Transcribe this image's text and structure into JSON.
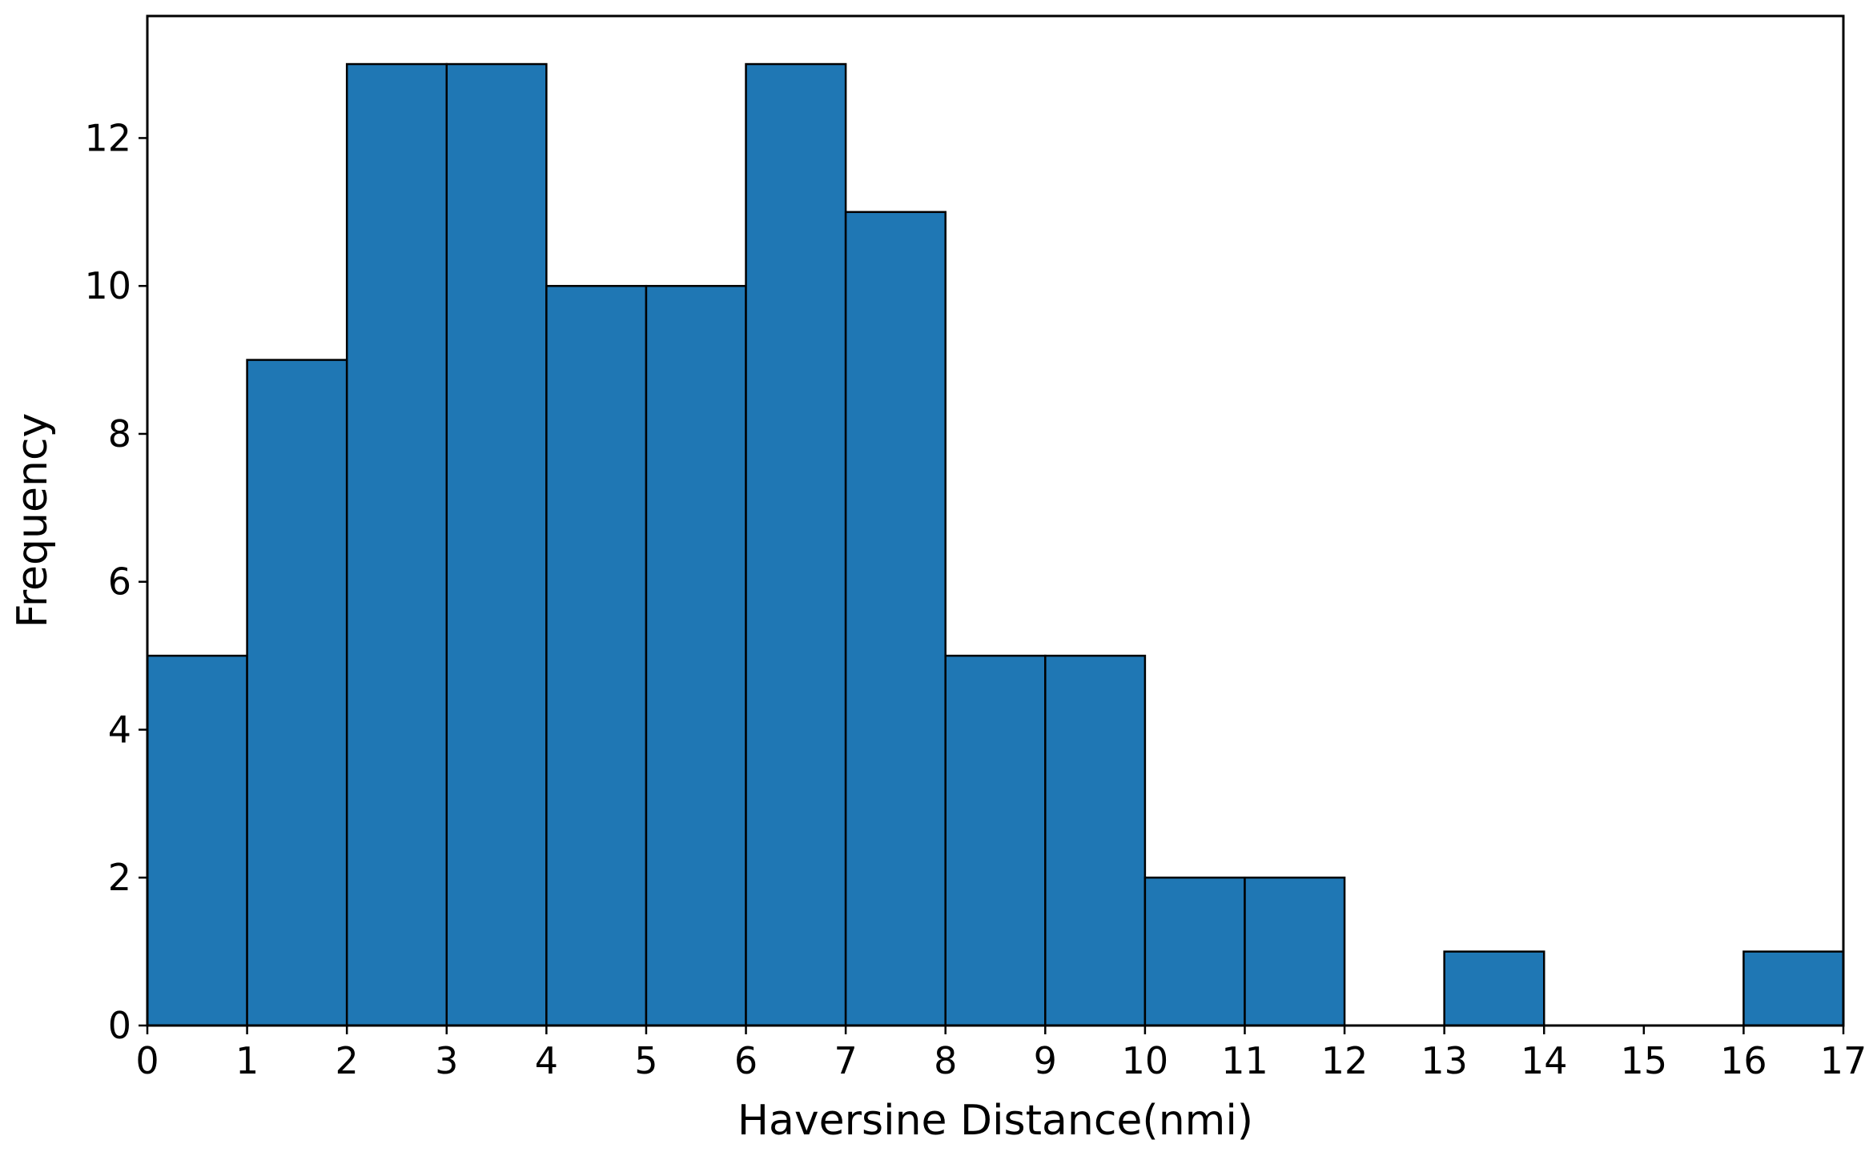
{
  "chart_data": {
    "type": "bar",
    "title": "",
    "xlabel": "Haversine Distance(nmi)",
    "ylabel": "Frequency",
    "bins": [
      {
        "x0": 0,
        "x1": 1,
        "count": 5
      },
      {
        "x0": 1,
        "x1": 2,
        "count": 9
      },
      {
        "x0": 2,
        "x1": 3,
        "count": 13
      },
      {
        "x0": 3,
        "x1": 4,
        "count": 13
      },
      {
        "x0": 4,
        "x1": 5,
        "count": 10
      },
      {
        "x0": 5,
        "x1": 6,
        "count": 10
      },
      {
        "x0": 6,
        "x1": 7,
        "count": 13
      },
      {
        "x0": 7,
        "x1": 8,
        "count": 11
      },
      {
        "x0": 8,
        "x1": 9,
        "count": 5
      },
      {
        "x0": 9,
        "x1": 10,
        "count": 5
      },
      {
        "x0": 10,
        "x1": 11,
        "count": 2
      },
      {
        "x0": 11,
        "x1": 12,
        "count": 2
      },
      {
        "x0": 12,
        "x1": 13,
        "count": 0
      },
      {
        "x0": 13,
        "x1": 14,
        "count": 1
      },
      {
        "x0": 14,
        "x1": 15,
        "count": 0
      },
      {
        "x0": 15,
        "x1": 16,
        "count": 0
      },
      {
        "x0": 16,
        "x1": 17,
        "count": 1
      }
    ],
    "xlim": [
      0,
      17
    ],
    "ylim": [
      0,
      13.65
    ],
    "xticks": [
      "0",
      "1",
      "2",
      "3",
      "4",
      "5",
      "6",
      "7",
      "8",
      "9",
      "10",
      "11",
      "12",
      "13",
      "14",
      "15",
      "16",
      "17"
    ],
    "yticks": [
      "0",
      "2",
      "4",
      "6",
      "8",
      "10",
      "12"
    ],
    "bar_color": "#1f77b4",
    "edge_color": "#000000",
    "grid": false,
    "legend": "none"
  }
}
